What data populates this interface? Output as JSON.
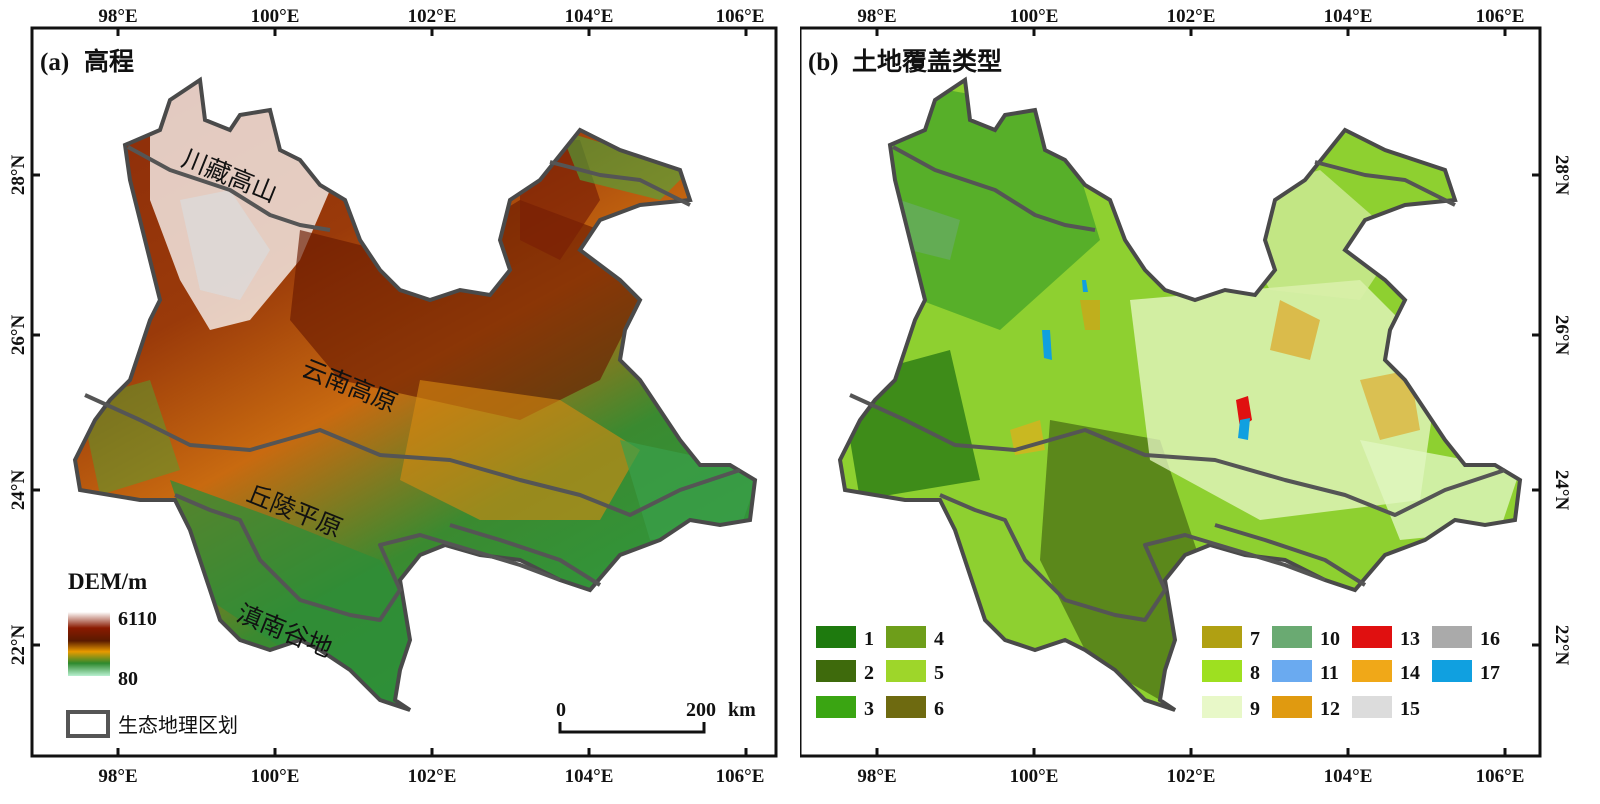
{
  "colors": {
    "frame": "#111111",
    "boundary": "#555555",
    "province_outline": "#4a4a4a"
  },
  "axes": {
    "lon_labels": [
      "98°E",
      "100°E",
      "102°E",
      "104°E",
      "106°E"
    ],
    "lat_labels": [
      "28°N",
      "26°N",
      "24°N",
      "22°N"
    ]
  },
  "panel_a": {
    "title_prefix": "(a)",
    "title": "高程",
    "region_labels": [
      "川藏高山",
      "云南高原",
      "丘陵平原",
      "滇南谷地"
    ],
    "dem_legend": {
      "title": "DEM/m",
      "max": "6110",
      "min": "80",
      "gradient": [
        "#ffffff",
        "#8a1a00",
        "#5a1a00",
        "#e89a00",
        "#2e8a2e",
        "#b8f0d0"
      ]
    },
    "boundary_legend_label": "生态地理区划",
    "scale_bar": {
      "start": "0",
      "end": "200",
      "unit": "km"
    }
  },
  "panel_b": {
    "title_prefix": "(b)",
    "title": "土地覆盖类型",
    "landcover_legend": [
      {
        "code": "1",
        "color": "#1e7a0e"
      },
      {
        "code": "2",
        "color": "#3e6a0c"
      },
      {
        "code": "3",
        "color": "#3aa512"
      },
      {
        "code": "4",
        "color": "#6e9e1a"
      },
      {
        "code": "5",
        "color": "#9ed62a"
      },
      {
        "code": "6",
        "color": "#6e6a10"
      },
      {
        "code": "7",
        "color": "#b0a012"
      },
      {
        "code": "8",
        "color": "#9ee020"
      },
      {
        "code": "9",
        "color": "#e8f8c8"
      },
      {
        "code": "10",
        "color": "#6aaa72"
      },
      {
        "code": "11",
        "color": "#6aaaf0"
      },
      {
        "code": "12",
        "color": "#e09a10"
      },
      {
        "code": "13",
        "color": "#e01010"
      },
      {
        "code": "14",
        "color": "#f0a818"
      },
      {
        "code": "15",
        "color": "#dcdcdc"
      },
      {
        "code": "16",
        "color": "#aaaaaa"
      },
      {
        "code": "17",
        "color": "#10a0e0"
      }
    ]
  }
}
